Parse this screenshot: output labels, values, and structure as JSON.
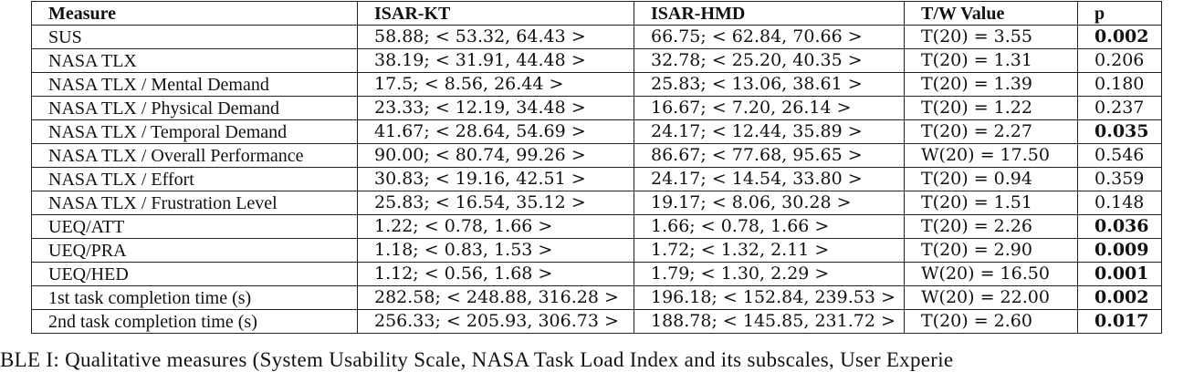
{
  "table": {
    "headers": [
      "Measure",
      "ISAR-KT",
      "ISAR-HMD",
      "T/W Value",
      "p"
    ],
    "rows": [
      {
        "measure": "SUS",
        "kt": "58.88; < 53.32, 64.43 >",
        "hmd": "66.75; < 62.84, 70.66 >",
        "tw": "T(20) =   3.55",
        "p": "0.002",
        "sig": true
      },
      {
        "measure": "NASA TLX",
        "kt": "38.19; < 31.91, 44.48 >",
        "hmd": "32.78; < 25.20, 40.35 >",
        "tw": "T(20) = 1.31",
        "p": "0.206",
        "sig": false
      },
      {
        "measure": "NASA TLX / Mental Demand",
        "kt": "17.5; < 8.56, 26.44 >",
        "hmd": "25.83; < 13.06, 38.61 >",
        "tw": "T(20) = 1.39",
        "p": "0.180",
        "sig": false
      },
      {
        "measure": "NASA TLX / Physical Demand",
        "kt": "23.33; < 12.19, 34.48 >",
        "hmd": "16.67; < 7.20, 26.14 >",
        "tw": "T(20) =   1.22",
        "p": "0.237",
        "sig": false
      },
      {
        "measure": "NASA TLX / Temporal Demand",
        "kt": "41.67; < 28.64, 54.69 >",
        "hmd": "24.17; < 12.44, 35.89 >",
        "tw": "T(20) =   2.27",
        "p": "0.035",
        "sig": true
      },
      {
        "measure": "NASA TLX / Overall Performance",
        "kt": "90.00; < 80.74, 99.26 >",
        "hmd": "86.67; < 77.68, 95.65 >",
        "tw": "W(20) = 17.50",
        "p": "0.546",
        "sig": false
      },
      {
        "measure": "NASA TLX / Effort",
        "kt": "30.83; < 19.16, 42.51 >",
        "hmd": "24.17; < 14.54, 33.80 >",
        "tw": "T(20) =   0.94",
        "p": "0.359",
        "sig": false
      },
      {
        "measure": "NASA TLX / Frustration Level",
        "kt": "25.83; < 16.54, 35.12 >",
        "hmd": "19.17; < 8.06, 30.28 >",
        "tw": "T(20) =   1.51",
        "p": "0.148",
        "sig": false
      },
      {
        "measure": "UEQ/ATT",
        "kt": "1.22; < 0.78, 1.66 >",
        "hmd": "1.66; < 0.78, 1.66 >",
        "tw": "T(20) =   2.26",
        "p": "0.036",
        "sig": true
      },
      {
        "measure": "UEQ/PRA",
        "kt": "1.18; < 0.83, 1.53 >",
        "hmd": "1.72; < 1.32, 2.11 >",
        "tw": "T(20) =   2.90",
        "p": "0.009",
        "sig": true
      },
      {
        "measure": "UEQ/HED",
        "kt": "1.12; < 0.56, 1.68 >",
        "hmd": "1.79; < 1.30, 2.29 >",
        "tw": "W(20) = 16.50",
        "p": "0.001",
        "sig": true
      },
      {
        "measure": "1st task completion time (s)",
        "kt": "282.58; < 248.88, 316.28 >",
        "hmd": "196.18; < 152.84, 239.53 >",
        "tw": "W(20) = 22.00",
        "p": "0.002",
        "sig": true
      },
      {
        "measure": "2nd task completion time (s)",
        "kt": "256.33; < 205.93, 306.73 >",
        "hmd": "188.78; < 145.85, 231.72 >",
        "tw": "T(20) = 2.60",
        "p": "0.017",
        "sig": true
      }
    ]
  },
  "caption": "BLE I: Qualitative measures (System Usability Scale, NASA Task Load Index and its subscales, User Experie"
}
